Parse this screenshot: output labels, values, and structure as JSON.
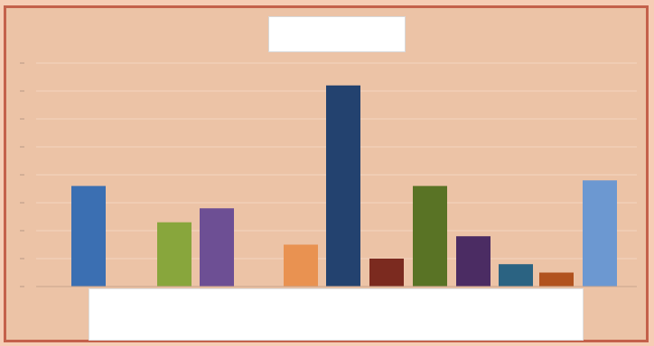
{
  "chart_data": {
    "type": "bar",
    "title": "",
    "subtitle": "",
    "xlabel": "",
    "ylabel": "",
    "ylim": [
      0,
      8
    ],
    "grid": true,
    "legend_position": "bottom",
    "series": [
      {
        "color": "#3b6fb2",
        "values": [
          3.6
        ]
      },
      {
        "color": "#88a63c",
        "values": [
          2.3
        ]
      },
      {
        "color": "#6d4f94",
        "values": [
          2.8
        ]
      },
      {
        "color": "#e99251",
        "values": [
          1.5
        ]
      },
      {
        "color": "#23426f",
        "values": [
          7.2
        ]
      },
      {
        "color": "#7b2a1f",
        "values": [
          1.0
        ]
      },
      {
        "color": "#597325",
        "values": [
          3.6
        ]
      },
      {
        "color": "#4b2c63",
        "values": [
          1.8
        ]
      },
      {
        "color": "#2b6382",
        "values": [
          0.8
        ]
      },
      {
        "color": "#b1521e",
        "values": [
          0.5
        ]
      },
      {
        "color": "#6c98d1",
        "values": [
          3.8
        ]
      }
    ]
  }
}
